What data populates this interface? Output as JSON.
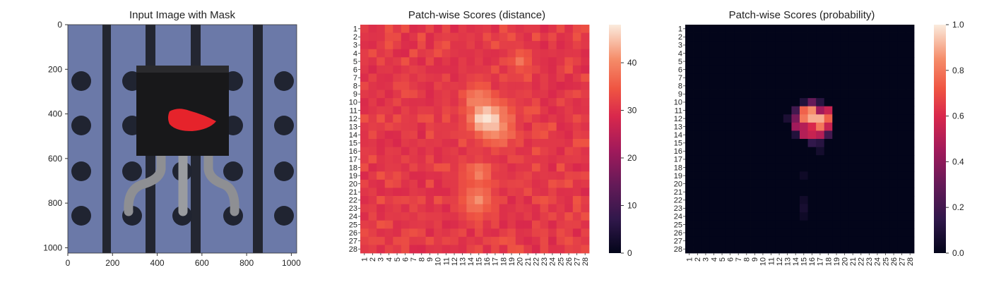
{
  "chart_data": [
    {
      "type": "image",
      "title": "Input Image with Mask",
      "xlabel": "",
      "ylabel": "",
      "xlim": [
        0,
        1024
      ],
      "ylim": [
        1024,
        0
      ],
      "xticks": [
        "0",
        "200",
        "400",
        "600",
        "800",
        "1000"
      ],
      "yticks": [
        "0",
        "200",
        "400",
        "600",
        "800",
        "1000"
      ],
      "mask_color": "#e6232b",
      "background_color": "#6c7aa8"
    },
    {
      "type": "heatmap",
      "title": "Patch-wise Scores (distance)",
      "xlabel": "",
      "ylabel": "",
      "rows": 28,
      "cols": 28,
      "tick_labels": [
        "1",
        "2",
        "3",
        "4",
        "5",
        "6",
        "7",
        "8",
        "9",
        "10",
        "11",
        "12",
        "13",
        "14",
        "15",
        "16",
        "17",
        "18",
        "19",
        "20",
        "21",
        "22",
        "23",
        "24",
        "25",
        "26",
        "27",
        "28"
      ],
      "colormap": "rocket",
      "vmin": 0,
      "vmax": 48,
      "colorbar_ticks": [
        "0",
        "10",
        "20",
        "30",
        "40"
      ],
      "background_level": 30,
      "hotspots": [
        {
          "row": 12,
          "col": 16,
          "value": 48,
          "spread": 1.6
        },
        {
          "row": 13,
          "col": 17,
          "value": 44,
          "spread": 1.6
        },
        {
          "row": 10,
          "col": 15,
          "value": 40,
          "spread": 1.4
        },
        {
          "row": 19,
          "col": 15,
          "value": 39,
          "spread": 1.3
        },
        {
          "row": 22,
          "col": 15,
          "value": 40,
          "spread": 1.5
        },
        {
          "row": 5,
          "col": 20,
          "value": 37,
          "spread": 1.2
        }
      ]
    },
    {
      "type": "heatmap",
      "title": "Patch-wise Scores (probability)",
      "xlabel": "",
      "ylabel": "",
      "rows": 28,
      "cols": 28,
      "tick_labels": [
        "1",
        "2",
        "3",
        "4",
        "5",
        "6",
        "7",
        "8",
        "9",
        "10",
        "11",
        "12",
        "13",
        "14",
        "15",
        "16",
        "17",
        "18",
        "19",
        "20",
        "21",
        "22",
        "23",
        "24",
        "25",
        "26",
        "27",
        "28"
      ],
      "colormap": "rocket",
      "vmin": 0,
      "vmax": 1,
      "colorbar_ticks": [
        "0.0",
        "0.2",
        "0.4",
        "0.6",
        "0.8",
        "1.0"
      ],
      "cells": [
        {
          "row": 10,
          "col": 16,
          "value": 0.3
        },
        {
          "row": 10,
          "col": 17,
          "value": 0.12
        },
        {
          "row": 11,
          "col": 14,
          "value": 0.2
        },
        {
          "row": 11,
          "col": 15,
          "value": 0.75
        },
        {
          "row": 11,
          "col": 16,
          "value": 0.85
        },
        {
          "row": 11,
          "col": 17,
          "value": 0.45
        },
        {
          "row": 11,
          "col": 18,
          "value": 0.55
        },
        {
          "row": 12,
          "col": 14,
          "value": 0.35
        },
        {
          "row": 12,
          "col": 15,
          "value": 0.8
        },
        {
          "row": 12,
          "col": 16,
          "value": 0.9
        },
        {
          "row": 12,
          "col": 17,
          "value": 0.9
        },
        {
          "row": 12,
          "col": 18,
          "value": 0.75
        },
        {
          "row": 13,
          "col": 14,
          "value": 0.45
        },
        {
          "row": 13,
          "col": 15,
          "value": 0.5
        },
        {
          "row": 13,
          "col": 16,
          "value": 0.6
        },
        {
          "row": 13,
          "col": 17,
          "value": 0.8
        },
        {
          "row": 13,
          "col": 18,
          "value": 0.55
        },
        {
          "row": 14,
          "col": 15,
          "value": 0.5
        },
        {
          "row": 14,
          "col": 16,
          "value": 0.55
        },
        {
          "row": 14,
          "col": 17,
          "value": 0.5
        },
        {
          "row": 14,
          "col": 18,
          "value": 0.2
        },
        {
          "row": 15,
          "col": 16,
          "value": 0.15
        },
        {
          "row": 15,
          "col": 17,
          "value": 0.12
        },
        {
          "row": 12,
          "col": 13,
          "value": 0.08
        },
        {
          "row": 14,
          "col": 14,
          "value": 0.1
        },
        {
          "row": 10,
          "col": 15,
          "value": 0.1
        },
        {
          "row": 16,
          "col": 17,
          "value": 0.06
        },
        {
          "row": 19,
          "col": 15,
          "value": 0.04
        },
        {
          "row": 22,
          "col": 15,
          "value": 0.05
        },
        {
          "row": 23,
          "col": 15,
          "value": 0.07
        },
        {
          "row": 24,
          "col": 15,
          "value": 0.04
        }
      ]
    }
  ]
}
